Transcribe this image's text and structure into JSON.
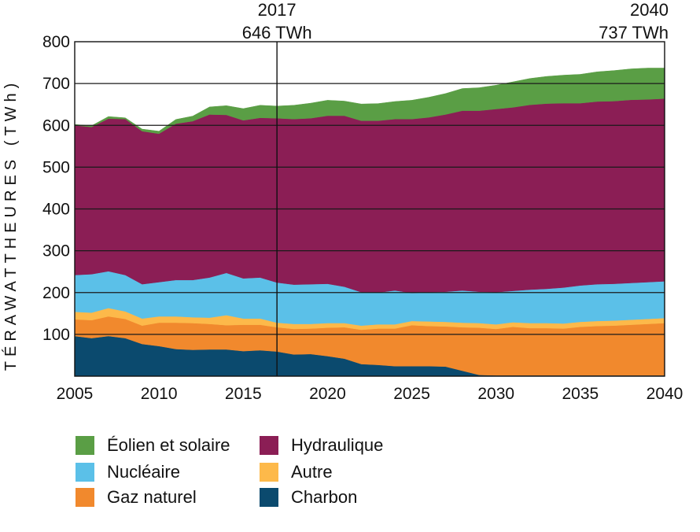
{
  "chart_data": {
    "type": "area",
    "stacked": true,
    "ylabel": "TÉRAWATTHEURES (TWh)",
    "xlabel": "",
    "ylim": [
      0,
      800
    ],
    "xlim": [
      2005,
      2040
    ],
    "yticks": [
      100,
      200,
      300,
      400,
      500,
      600,
      700,
      800
    ],
    "xticks": [
      2005,
      2010,
      2015,
      2020,
      2025,
      2030,
      2035,
      2040
    ],
    "grid": "horizontal",
    "legend_position": "bottom",
    "annotations": [
      {
        "x": 2017,
        "year": "2017",
        "value": "646 TWh"
      },
      {
        "x": 2040,
        "year": "2040",
        "value": "737 TWh"
      }
    ],
    "x": [
      2005,
      2006,
      2007,
      2008,
      2009,
      2010,
      2011,
      2012,
      2013,
      2014,
      2015,
      2016,
      2017,
      2018,
      2019,
      2020,
      2021,
      2022,
      2023,
      2024,
      2025,
      2026,
      2027,
      2028,
      2029,
      2030,
      2031,
      2032,
      2033,
      2034,
      2035,
      2036,
      2037,
      2038,
      2039,
      2040
    ],
    "series": [
      {
        "name": "Charbon",
        "color": "#0b4a6e",
        "values": [
          96,
          91,
          96,
          91,
          77,
          72,
          65,
          63,
          64,
          64,
          60,
          62,
          59,
          52,
          53,
          48,
          42,
          29,
          27,
          24,
          24,
          24,
          23,
          13,
          3,
          2,
          2,
          2,
          2,
          2,
          2,
          2,
          2,
          2,
          2,
          2
        ]
      },
      {
        "name": "Gaz naturel",
        "color": "#f1892d",
        "values": [
          40,
          43,
          47,
          46,
          44,
          56,
          63,
          64,
          61,
          58,
          63,
          61,
          58,
          61,
          61,
          68,
          75,
          82,
          87,
          90,
          98,
          96,
          96,
          104,
          113,
          111,
          116,
          113,
          113,
          112,
          116,
          118,
          119,
          121,
          123,
          125
        ]
      },
      {
        "name": "Autre",
        "color": "#fdb94a",
        "values": [
          18,
          18,
          20,
          18,
          17,
          15,
          15,
          14,
          15,
          24,
          15,
          15,
          11,
          12,
          11,
          11,
          10,
          10,
          10,
          10,
          10,
          11,
          11,
          11,
          11,
          11,
          11,
          12,
          12,
          12,
          12,
          12,
          12,
          12,
          12,
          12
        ]
      },
      {
        "name": "Nucléaire",
        "color": "#5bc0e8",
        "values": [
          88,
          92,
          88,
          87,
          82,
          82,
          87,
          89,
          96,
          101,
          96,
          98,
          96,
          94,
          95,
          94,
          87,
          80,
          76,
          81,
          67,
          70,
          72,
          77,
          75,
          77,
          75,
          80,
          82,
          86,
          87,
          88,
          88,
          88,
          88,
          88
        ]
      },
      {
        "name": "Hydraulique",
        "color": "#8b1e55",
        "values": [
          358,
          352,
          365,
          373,
          366,
          355,
          374,
          380,
          390,
          378,
          378,
          382,
          393,
          396,
          397,
          402,
          409,
          410,
          411,
          410,
          416,
          418,
          424,
          430,
          433,
          438,
          439,
          442,
          443,
          441,
          436,
          437,
          437,
          438,
          437,
          437
        ]
      },
      {
        "name": "Éolien et solaire",
        "color": "#5a9e45",
        "values": [
          2,
          3,
          5,
          3,
          5,
          6,
          10,
          12,
          18,
          22,
          28,
          30,
          29,
          33,
          36,
          37,
          35,
          40,
          41,
          42,
          45,
          48,
          50,
          53,
          55,
          57,
          61,
          63,
          65,
          67,
          69,
          71,
          73,
          74,
          75,
          73
        ]
      }
    ],
    "legend": [
      {
        "name": "Éolien et solaire",
        "color": "#5a9e45"
      },
      {
        "name": "Hydraulique",
        "color": "#8b1e55"
      },
      {
        "name": "Nucléaire",
        "color": "#5bc0e8"
      },
      {
        "name": "Autre",
        "color": "#fdb94a"
      },
      {
        "name": "Gaz naturel",
        "color": "#f1892d"
      },
      {
        "name": "Charbon",
        "color": "#0b4a6e"
      }
    ]
  }
}
